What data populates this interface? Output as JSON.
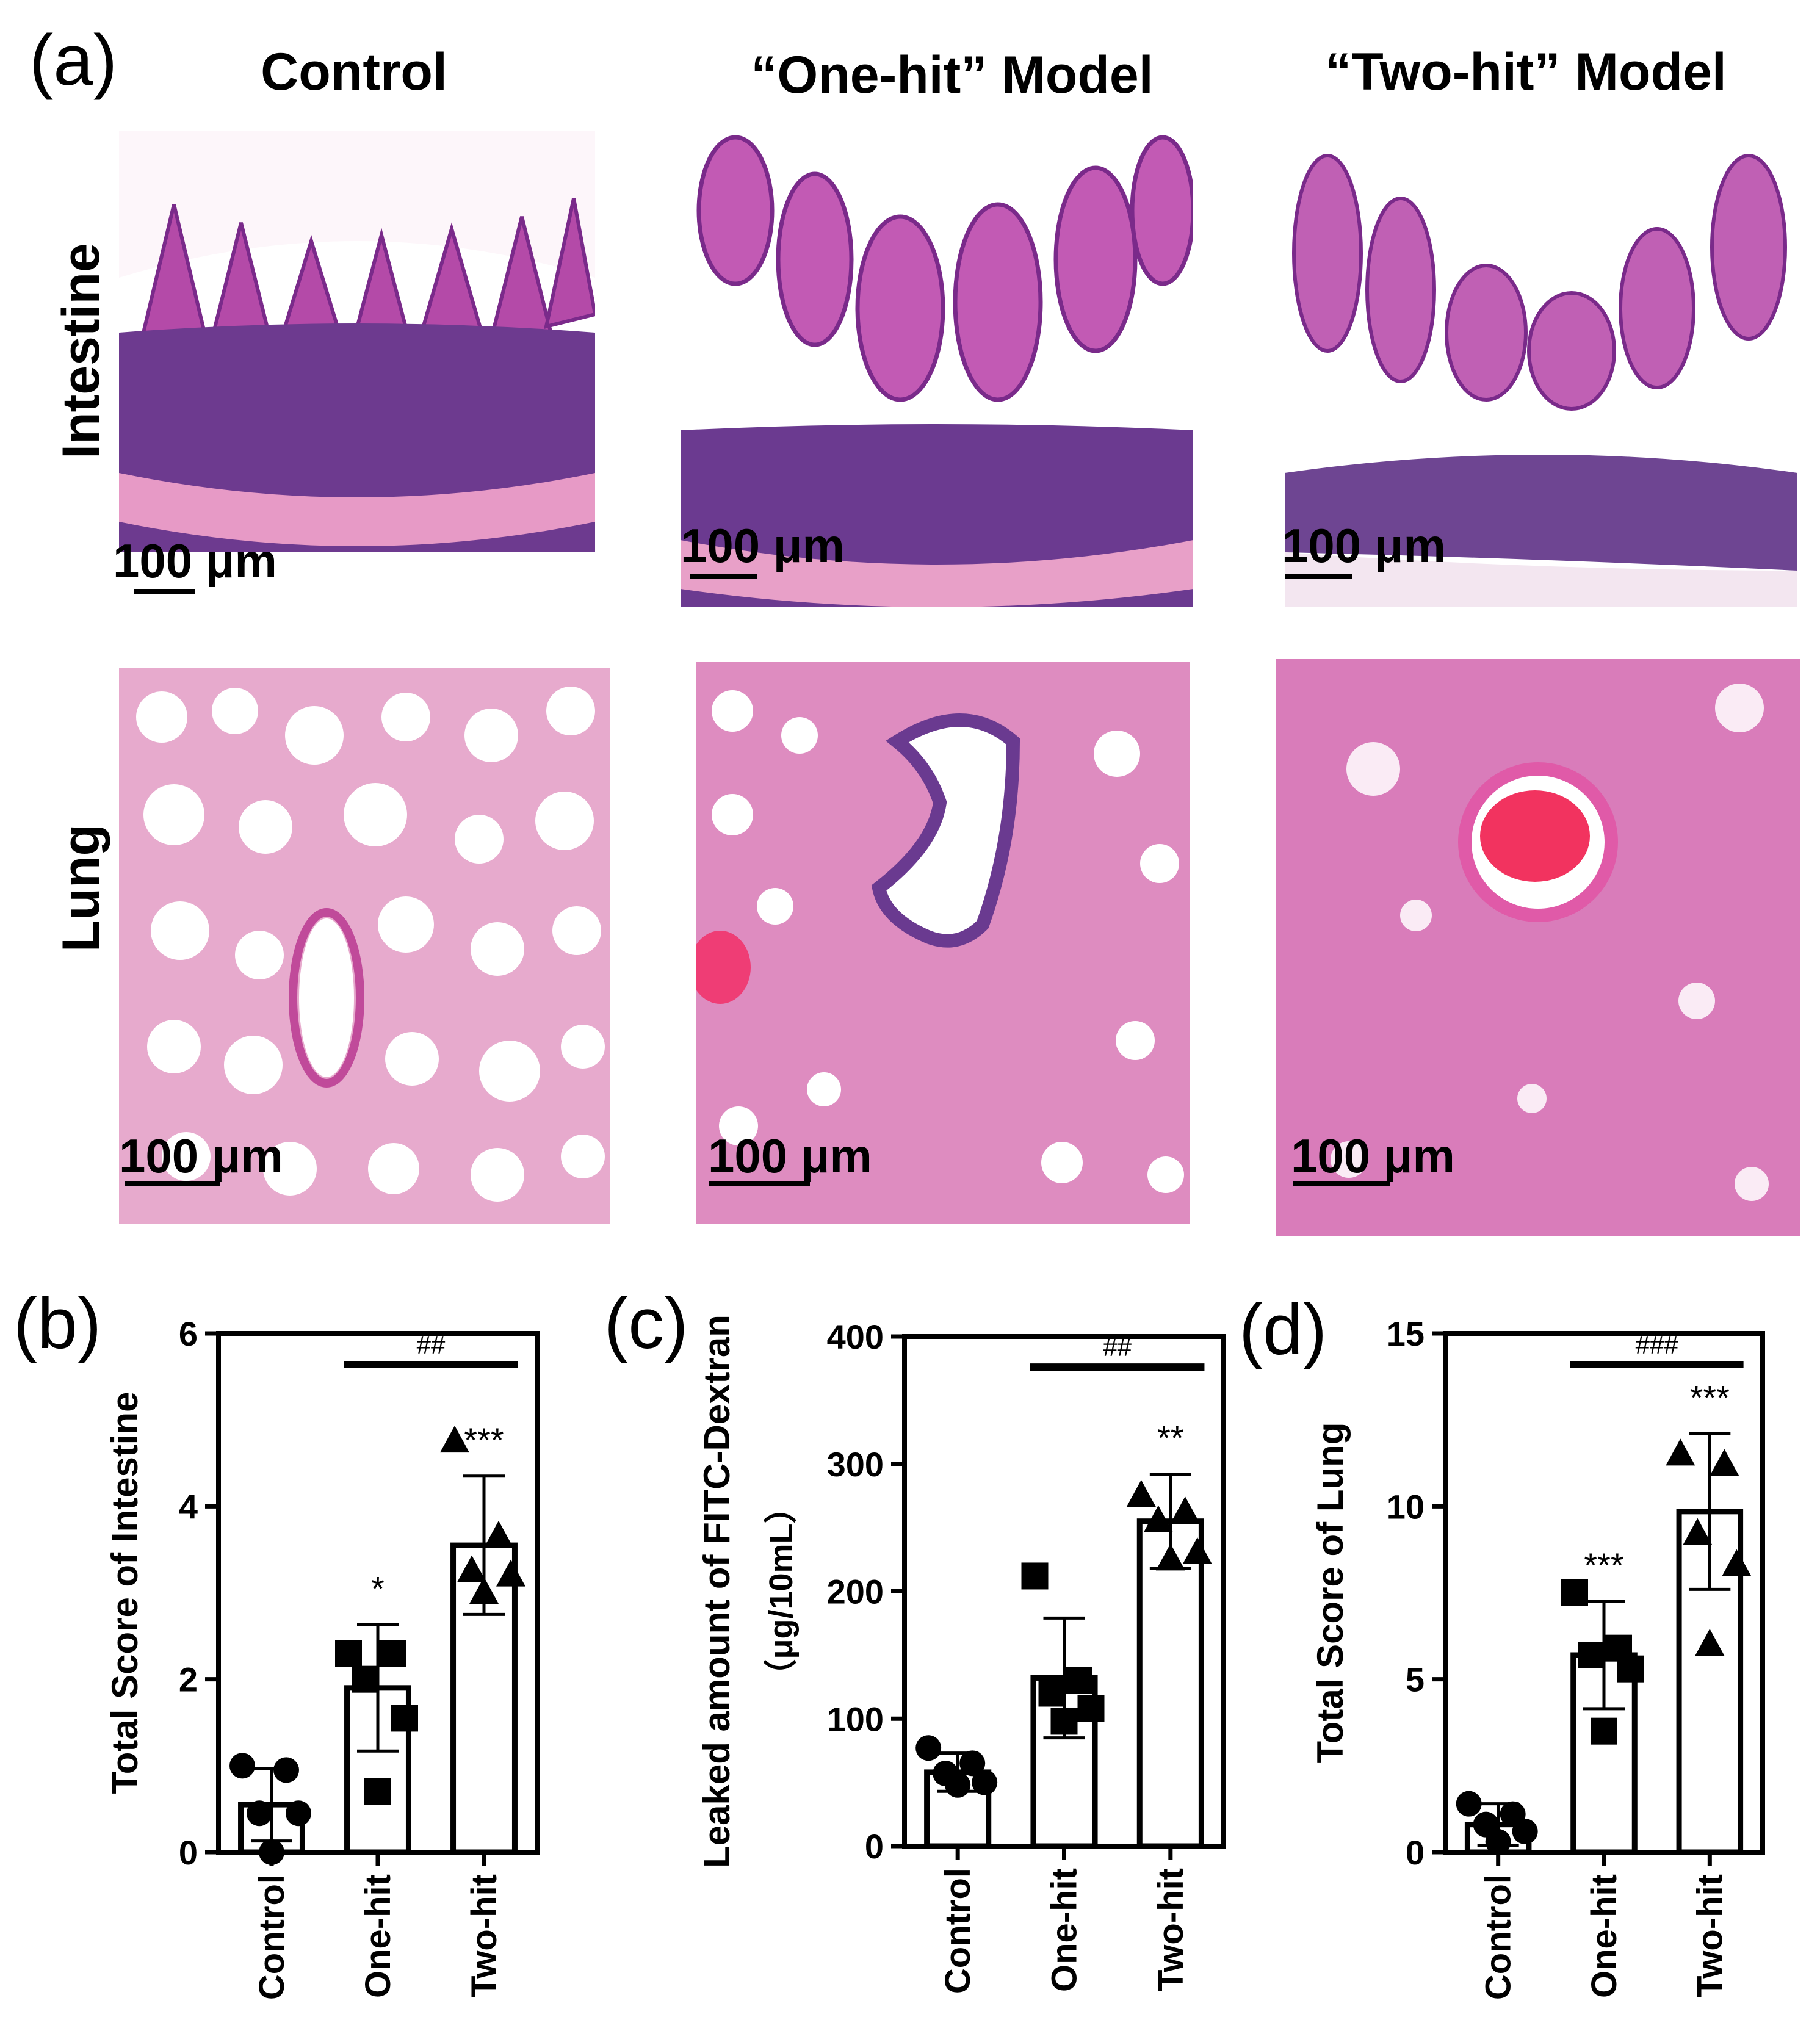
{
  "panel_a": {
    "letter": "(a)",
    "columns": [
      "Control",
      "“One-hit” Model",
      "“Two-hit” Model"
    ],
    "rows": [
      "Intestine",
      "Lung"
    ],
    "scale_label": "100 μm"
  },
  "chart_data": [
    {
      "panel": "(b)",
      "type": "bar",
      "categories": [
        "Control",
        "One-hit",
        "Two-hit"
      ],
      "values": [
        0.55,
        1.9,
        3.55
      ],
      "sd": [
        0.42,
        0.73,
        0.8
      ],
      "points": [
        [
          1.0,
          0.95,
          0.45,
          0.45,
          0.0
        ],
        [
          2.3,
          2.3,
          2.0,
          1.55,
          0.7
        ],
        [
          4.75,
          3.65,
          3.25,
          3.2,
          3.0
        ]
      ],
      "markers": [
        "circle",
        "square",
        "triangle"
      ],
      "significance": [
        "",
        "*",
        "***"
      ],
      "bracket": {
        "from": 1,
        "to": 2,
        "label": "##"
      },
      "ylabel": "Total Score of Intestine",
      "ylim": [
        0,
        6
      ],
      "yticks": [
        0,
        2,
        4,
        6
      ],
      "grid": false
    },
    {
      "panel": "(c)",
      "type": "bar",
      "categories": [
        "Control",
        "One-hit",
        "Two-hit"
      ],
      "values": [
        58,
        132,
        255
      ],
      "sd": [
        15,
        47,
        37
      ],
      "points": [
        [
          77,
          65,
          57,
          50,
          48
        ],
        [
          212,
          130,
          120,
          108,
          98
        ],
        [
          275,
          262,
          255,
          230,
          225
        ]
      ],
      "markers": [
        "circle",
        "square",
        "triangle"
      ],
      "significance": [
        "",
        "",
        "**"
      ],
      "bracket": {
        "from": 1,
        "to": 2,
        "label": "##"
      },
      "ylabel": "Leaked amount of FITC-Dextran",
      "ylabel2": "（μg/10mL）",
      "ylim": [
        0,
        400
      ],
      "yticks": [
        0,
        100,
        200,
        300,
        400
      ],
      "grid": false
    },
    {
      "panel": "(d)",
      "type": "bar",
      "categories": [
        "Control",
        "One-hit",
        "Two-hit"
      ],
      "values": [
        0.8,
        5.7,
        9.85
      ],
      "sd": [
        0.6,
        1.55,
        2.25
      ],
      "points": [
        [
          1.4,
          1.1,
          0.8,
          0.6,
          0.3
        ],
        [
          7.5,
          5.9,
          5.7,
          5.3,
          3.5
        ],
        [
          11.5,
          11.2,
          9.2,
          8.3,
          6.0
        ]
      ],
      "markers": [
        "circle",
        "square",
        "triangle"
      ],
      "significance": [
        "",
        "***",
        "***"
      ],
      "bracket": {
        "from": 1,
        "to": 2,
        "label": "###"
      },
      "ylabel": "Total Score of Lung",
      "ylim": [
        0,
        15
      ],
      "yticks": [
        0,
        5,
        10,
        15
      ],
      "grid": false
    }
  ]
}
